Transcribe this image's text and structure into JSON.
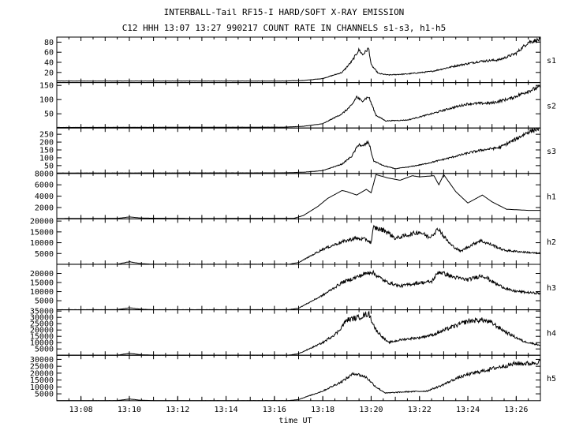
{
  "header": {
    "title": "INTERBALL-Tail RF15-I HARD/SOFT X-RAY EMISSION",
    "subtitle": "C12 HHH 13:07 13:27 990217  COUNT RATE IN CHANNELS s1-s3, h1-h5"
  },
  "chart_data": {
    "type": "line",
    "title": "INTERBALL-Tail RF15-I HARD/SOFT X-RAY EMISSION",
    "subtitle": "C12 HHH 13:07 13:27 990217  COUNT RATE IN CHANNELS s1-s3, h1-h5",
    "xlabel": "time UT",
    "x_range_minutes": [
      7.0,
      27.0
    ],
    "x_ticks": [
      {
        "m": 8,
        "label": "13:08"
      },
      {
        "m": 10,
        "label": "13:10"
      },
      {
        "m": 12,
        "label": "13:12"
      },
      {
        "m": 14,
        "label": "13:14"
      },
      {
        "m": 16,
        "label": "13:16"
      },
      {
        "m": 18,
        "label": "13:18"
      },
      {
        "m": 20,
        "label": "13:20"
      },
      {
        "m": 22,
        "label": "13:22"
      },
      {
        "m": 24,
        "label": "13:24"
      },
      {
        "m": 26,
        "label": "13:26"
      }
    ],
    "panels": [
      {
        "name": "s1",
        "ylim": [
          0,
          90
        ],
        "yticks": [
          20,
          40,
          60,
          80
        ],
        "noise": 0.05,
        "points": [
          [
            7.0,
            3
          ],
          [
            16.4,
            3
          ],
          [
            17.2,
            4
          ],
          [
            18.0,
            8
          ],
          [
            18.8,
            20
          ],
          [
            19.2,
            42
          ],
          [
            19.5,
            65
          ],
          [
            19.65,
            55
          ],
          [
            19.9,
            68
          ],
          [
            20.0,
            35
          ],
          [
            20.3,
            18
          ],
          [
            20.7,
            15
          ],
          [
            21.5,
            17
          ],
          [
            22.5,
            22
          ],
          [
            23.5,
            33
          ],
          [
            24.5,
            42
          ],
          [
            25.3,
            45
          ],
          [
            26.0,
            58
          ],
          [
            26.5,
            80
          ],
          [
            27.0,
            85
          ]
        ]
      },
      {
        "name": "s2",
        "ylim": [
          0,
          160
        ],
        "yticks": [
          50,
          100,
          150
        ],
        "noise": 0.05,
        "points": [
          [
            7.0,
            2
          ],
          [
            16.4,
            3
          ],
          [
            17.2,
            6
          ],
          [
            18.0,
            15
          ],
          [
            18.8,
            50
          ],
          [
            19.2,
            80
          ],
          [
            19.4,
            110
          ],
          [
            19.6,
            95
          ],
          [
            19.9,
            110
          ],
          [
            20.2,
            45
          ],
          [
            20.6,
            25
          ],
          [
            21.5,
            28
          ],
          [
            22.5,
            50
          ],
          [
            23.3,
            70
          ],
          [
            24.0,
            85
          ],
          [
            25.0,
            88
          ],
          [
            25.8,
            105
          ],
          [
            26.5,
            130
          ],
          [
            27.0,
            145
          ]
        ]
      },
      {
        "name": "s3",
        "ylim": [
          0,
          290
        ],
        "yticks": [
          50,
          100,
          150,
          200,
          250
        ],
        "noise": 0.05,
        "points": [
          [
            7.0,
            3
          ],
          [
            16.4,
            4
          ],
          [
            17.2,
            8
          ],
          [
            18.0,
            18
          ],
          [
            18.8,
            60
          ],
          [
            19.2,
            110
          ],
          [
            19.5,
            190
          ],
          [
            19.6,
            170
          ],
          [
            19.9,
            200
          ],
          [
            20.1,
            80
          ],
          [
            20.5,
            50
          ],
          [
            21.0,
            30
          ],
          [
            21.5,
            40
          ],
          [
            22.2,
            60
          ],
          [
            23.0,
            90
          ],
          [
            24.0,
            130
          ],
          [
            24.6,
            150
          ],
          [
            25.3,
            165
          ],
          [
            26.0,
            220
          ],
          [
            26.5,
            265
          ],
          [
            27.0,
            290
          ]
        ]
      },
      {
        "name": "h1",
        "ylim": [
          0,
          8000
        ],
        "yticks": [
          2000,
          4000,
          6000,
          8000
        ],
        "noise": 0.0,
        "points": [
          [
            7.0,
            60
          ],
          [
            9.5,
            80
          ],
          [
            10.0,
            350
          ],
          [
            10.5,
            150
          ],
          [
            11.0,
            120
          ],
          [
            12.5,
            70
          ],
          [
            16.8,
            90
          ],
          [
            17.2,
            600
          ],
          [
            17.8,
            2200
          ],
          [
            18.2,
            3600
          ],
          [
            18.8,
            5000
          ],
          [
            19.0,
            4800
          ],
          [
            19.4,
            4200
          ],
          [
            19.8,
            5200
          ],
          [
            20.0,
            4600
          ],
          [
            20.2,
            7800
          ],
          [
            20.7,
            7200
          ],
          [
            21.2,
            6800
          ],
          [
            21.7,
            7600
          ],
          [
            22.0,
            7400
          ],
          [
            22.6,
            7600
          ],
          [
            22.8,
            6000
          ],
          [
            23.0,
            7800
          ],
          [
            23.5,
            4800
          ],
          [
            24.0,
            2800
          ],
          [
            24.6,
            4200
          ],
          [
            25.0,
            3000
          ],
          [
            25.6,
            1700
          ],
          [
            26.5,
            1500
          ],
          [
            27.0,
            1500
          ]
        ]
      },
      {
        "name": "h2",
        "ylim": [
          0,
          21000
        ],
        "yticks": [
          5000,
          10000,
          15000,
          20000
        ],
        "noise": 0.07,
        "points": [
          [
            7.0,
            30
          ],
          [
            9.5,
            50
          ],
          [
            10.0,
            1200
          ],
          [
            10.5,
            300
          ],
          [
            11.0,
            60
          ],
          [
            16.6,
            60
          ],
          [
            17.0,
            800
          ],
          [
            18.0,
            7000
          ],
          [
            18.7,
            10000
          ],
          [
            19.3,
            12000
          ],
          [
            19.8,
            11500
          ],
          [
            20.0,
            10000
          ],
          [
            20.1,
            17000
          ],
          [
            20.6,
            15500
          ],
          [
            21.0,
            12000
          ],
          [
            21.5,
            13500
          ],
          [
            22.0,
            15000
          ],
          [
            22.4,
            12500
          ],
          [
            22.8,
            16500
          ],
          [
            23.0,
            13000
          ],
          [
            23.3,
            9000
          ],
          [
            23.7,
            6000
          ],
          [
            24.0,
            8000
          ],
          [
            24.5,
            11000
          ],
          [
            25.0,
            9000
          ],
          [
            25.5,
            6500
          ],
          [
            26.5,
            5500
          ],
          [
            27.0,
            5000
          ]
        ]
      },
      {
        "name": "h3",
        "ylim": [
          0,
          25000
        ],
        "yticks": [
          5000,
          10000,
          15000,
          20000
        ],
        "noise": 0.06,
        "points": [
          [
            7.0,
            50
          ],
          [
            9.5,
            80
          ],
          [
            10.0,
            1100
          ],
          [
            10.5,
            300
          ],
          [
            11.0,
            60
          ],
          [
            16.6,
            80
          ],
          [
            17.0,
            900
          ],
          [
            18.0,
            8000
          ],
          [
            18.8,
            15000
          ],
          [
            19.5,
            18500
          ],
          [
            20.0,
            21000
          ],
          [
            20.6,
            15500
          ],
          [
            21.2,
            13000
          ],
          [
            21.8,
            14500
          ],
          [
            22.5,
            15500
          ],
          [
            22.8,
            21000
          ],
          [
            23.4,
            18000
          ],
          [
            24.0,
            16500
          ],
          [
            24.6,
            19000
          ],
          [
            25.2,
            14000
          ],
          [
            25.8,
            10500
          ],
          [
            26.5,
            9500
          ],
          [
            27.0,
            9000
          ]
        ]
      },
      {
        "name": "h4",
        "ylim": [
          0,
          36000
        ],
        "yticks": [
          5000,
          10000,
          15000,
          20000,
          25000,
          30000,
          35000
        ],
        "noise": 0.07,
        "points": [
          [
            7.0,
            60
          ],
          [
            9.5,
            100
          ],
          [
            10.0,
            1500
          ],
          [
            10.5,
            400
          ],
          [
            11.0,
            80
          ],
          [
            16.6,
            100
          ],
          [
            17.0,
            1200
          ],
          [
            18.0,
            10000
          ],
          [
            18.6,
            18000
          ],
          [
            19.0,
            28000
          ],
          [
            19.5,
            30000
          ],
          [
            19.9,
            33000
          ],
          [
            20.2,
            20000
          ],
          [
            20.7,
            10000
          ],
          [
            21.3,
            12500
          ],
          [
            22.0,
            14000
          ],
          [
            22.6,
            16500
          ],
          [
            23.3,
            22000
          ],
          [
            24.0,
            27000
          ],
          [
            24.6,
            28000
          ],
          [
            25.0,
            25500
          ],
          [
            25.6,
            18000
          ],
          [
            26.3,
            11000
          ],
          [
            27.0,
            8000
          ]
        ]
      },
      {
        "name": "h5",
        "ylim": [
          0,
          33000
        ],
        "yticks": [
          5000,
          10000,
          15000,
          20000,
          25000,
          30000
        ],
        "noise": 0.06,
        "points": [
          [
            7.0,
            50
          ],
          [
            9.5,
            80
          ],
          [
            10.0,
            1200
          ],
          [
            10.5,
            300
          ],
          [
            11.0,
            60
          ],
          [
            16.6,
            80
          ],
          [
            17.0,
            900
          ],
          [
            18.0,
            7000
          ],
          [
            18.8,
            14000
          ],
          [
            19.3,
            20000
          ],
          [
            19.8,
            17000
          ],
          [
            20.2,
            10000
          ],
          [
            20.6,
            5500
          ],
          [
            21.5,
            6500
          ],
          [
            22.3,
            7000
          ],
          [
            22.9,
            11000
          ],
          [
            23.5,
            16000
          ],
          [
            24.0,
            19000
          ],
          [
            24.6,
            21500
          ],
          [
            25.3,
            24500
          ],
          [
            26.0,
            27000
          ],
          [
            26.6,
            27000
          ],
          [
            27.0,
            28500
          ]
        ]
      }
    ]
  }
}
